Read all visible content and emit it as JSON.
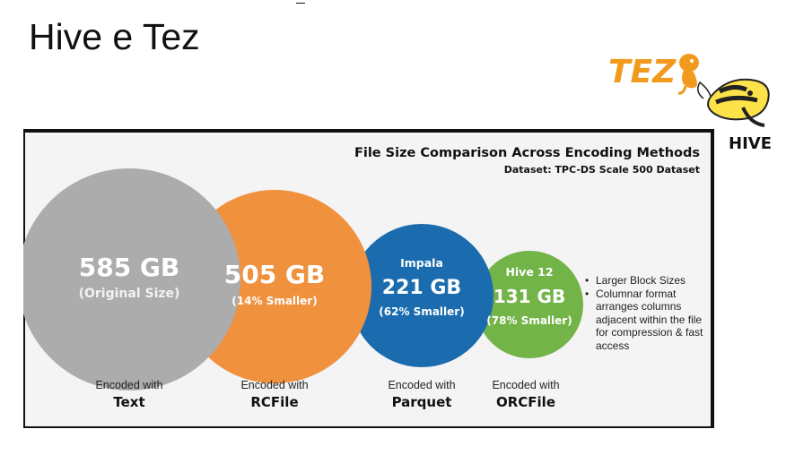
{
  "slide": {
    "title": "Hive e Tez",
    "logos": {
      "tez_text": "TEZ",
      "hive_text": "HIVE"
    }
  },
  "chart_data": {
    "type": "bubble",
    "title": "File Size Comparison Across Encoding Methods",
    "subtitle": "Dataset: TPC-DS Scale 500 Dataset",
    "unit": "GB",
    "items": [
      {
        "prefix": "",
        "value": 585,
        "value_label": "585 GB",
        "note": "(Original Size)",
        "caption_top": "Encoded with",
        "caption_bottom": "Text",
        "color": "#acacac"
      },
      {
        "prefix": "",
        "value": 505,
        "value_label": "505 GB",
        "note": "(14% Smaller)",
        "caption_top": "Encoded with",
        "caption_bottom": "RCFile",
        "color": "#f0913e"
      },
      {
        "prefix": "Impala",
        "value": 221,
        "value_label": "221 GB",
        "note": "(62% Smaller)",
        "caption_top": "Encoded with",
        "caption_bottom": "Parquet",
        "color": "#1b6cae"
      },
      {
        "prefix": "Hive 12",
        "value": 131,
        "value_label": "131 GB",
        "note": "(78% Smaller)",
        "caption_top": "Encoded with",
        "caption_bottom": "ORCFile",
        "color": "#72b448"
      }
    ],
    "bullets": [
      "Larger Block Sizes",
      "Columnar format arranges columns adjacent within the file for compression & fast access"
    ]
  }
}
